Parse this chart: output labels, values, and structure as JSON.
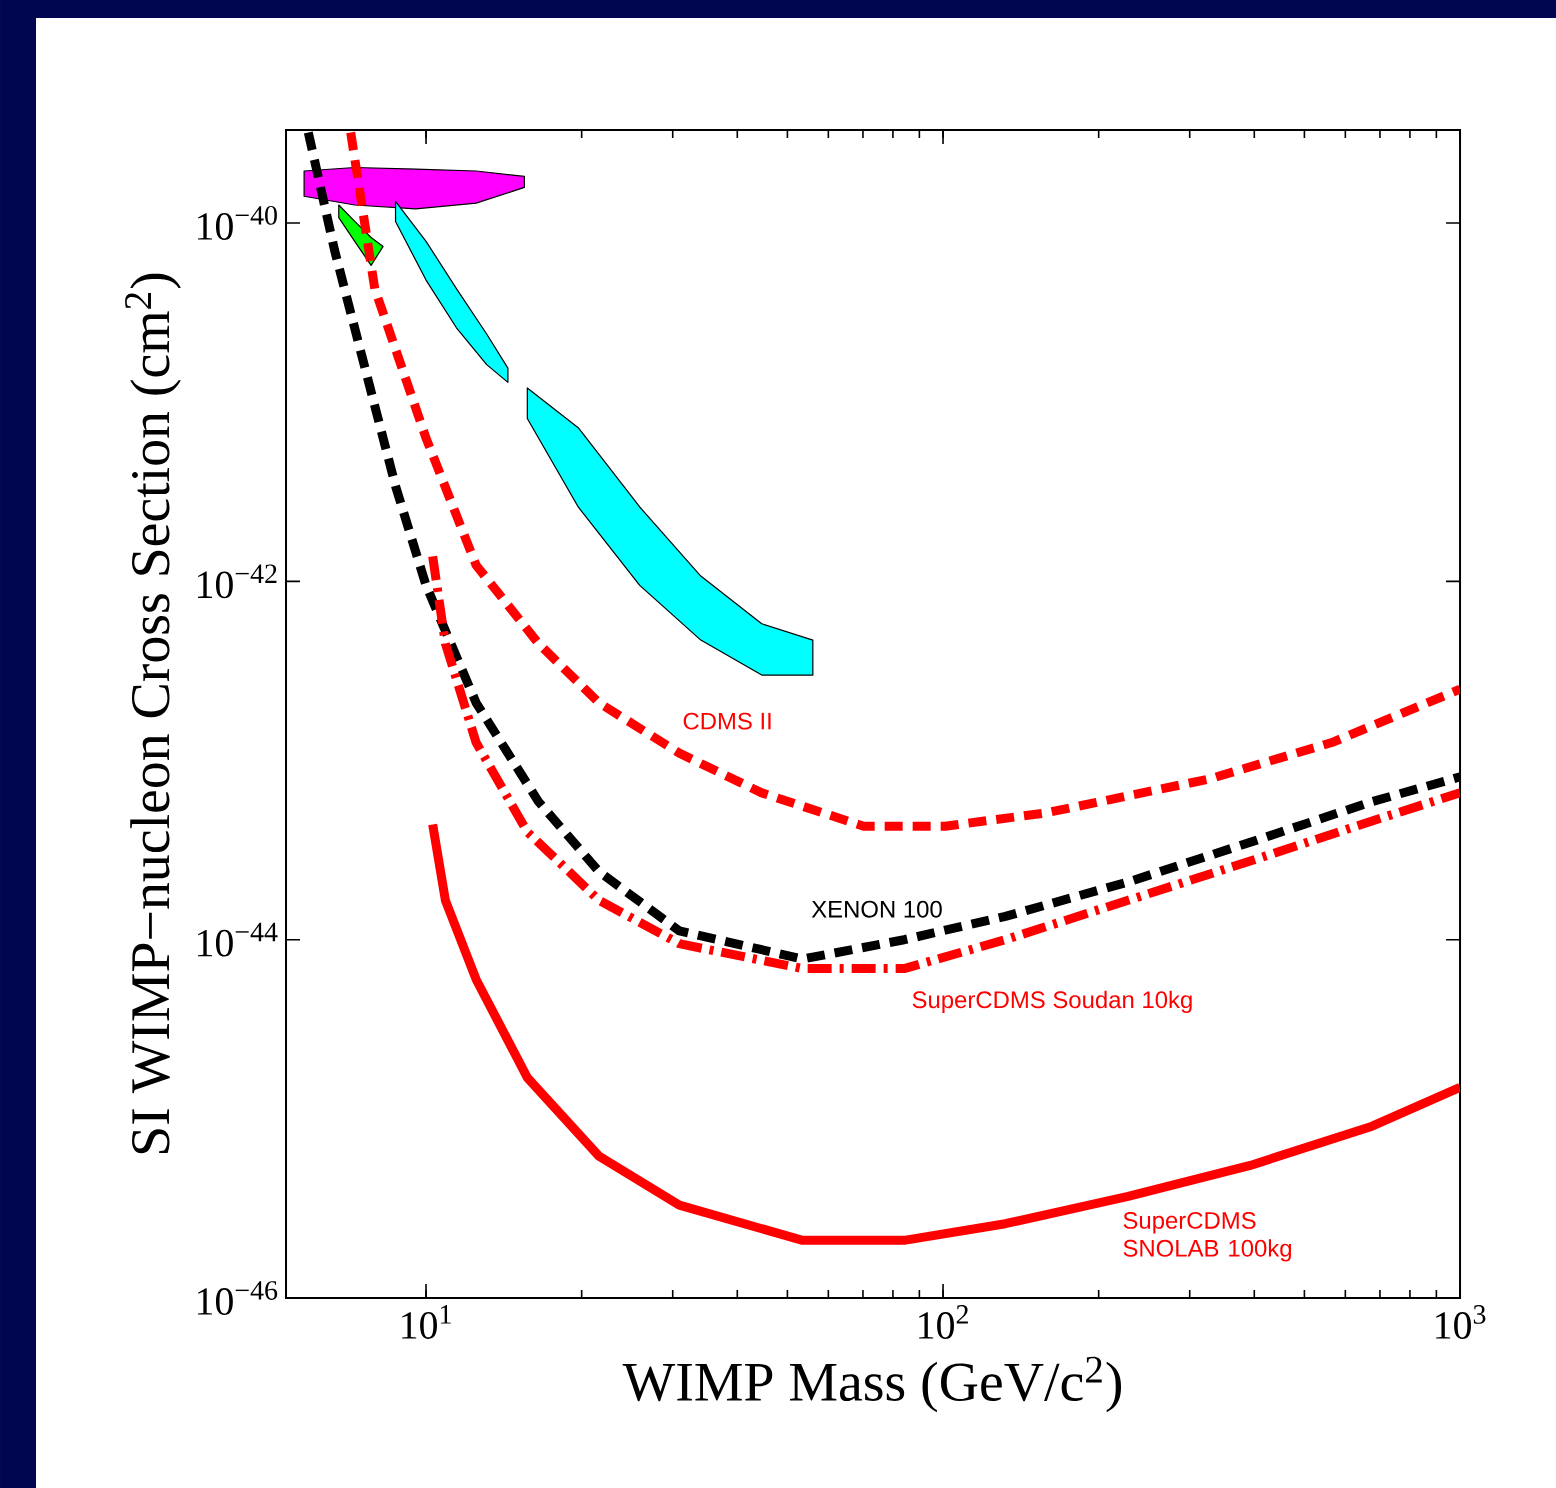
{
  "chart_data": {
    "type": "line",
    "xlabel": "WIMP Mass (GeV/c$^{2}$)",
    "ylabel": "SI WIMP−nucleon Cross Section (cm$^{2}$)",
    "log": "xy",
    "xlim": [
      5.36,
      1000
    ],
    "ylim": [
      1e-46,
      3.3e-40
    ],
    "xticks": [
      {
        "value": 10,
        "label": "10$^{1}$"
      },
      {
        "value": 100,
        "label": "10$^{2}$"
      },
      {
        "value": 1000,
        "label": "10$^{3}$"
      }
    ],
    "yticks": [
      {
        "value": 1e-40,
        "label": "10$^{−40}$"
      },
      {
        "value": 1e-42,
        "label": "10$^{−42}$"
      },
      {
        "value": 1e-44,
        "label": "10$^{−44}$"
      },
      {
        "value": 1e-46,
        "label": "10$^{−46}$"
      }
    ],
    "grid": false,
    "series": [
      {
        "type": "area",
        "color": "#ff00ff",
        "x": [
          5.81,
          7.28,
          9.55,
          12.5,
          15.5,
          15.5,
          12.5,
          9.55,
          7.28,
          5.81
        ],
        "values": [
          1.95e-40,
          2.04e-40,
          2e-40,
          1.95e-40,
          1.82e-40,
          1.58e-40,
          1.29e-40,
          1.2e-40,
          1.26e-40,
          1.41e-40
        ]
      },
      {
        "type": "area",
        "color": "#00ff00",
        "x": [
          6.78,
          7.28,
          7.83,
          8.26,
          7.83,
          7.28,
          6.78
        ],
        "values": [
          1.26e-40,
          1.02e-40,
          8.3e-41,
          7.4e-41,
          5.8e-41,
          7.9e-41,
          1.07e-40
        ]
      },
      {
        "type": "area",
        "color": "#00ffff",
        "x": [
          8.73,
          10,
          11.45,
          13.1,
          14.4,
          14.4,
          13.1,
          11.45,
          10,
          8.73
        ],
        "values": [
          1.32e-40,
          7.9e-41,
          4.3e-41,
          2.4e-41,
          1.55e-41,
          1.29e-41,
          1.62e-41,
          2.6e-41,
          4.8e-41,
          1.02e-40
        ]
      },
      {
        "type": "area",
        "color": "#00ffff",
        "x": [
          15.7,
          19.7,
          25.9,
          34.0,
          44.6,
          56.0,
          56.0,
          44.6,
          34.0,
          25.9,
          19.7,
          15.7
        ],
        "values": [
          1.2e-41,
          7.2e-42,
          2.6e-42,
          1.07e-42,
          5.8e-43,
          4.7e-43,
          3e-43,
          3e-43,
          4.7e-43,
          9.5e-43,
          2.6e-42,
          8.1e-42
        ]
      },
      {
        "name": "CDMS II",
        "color": "#ff0000",
        "line_style": "dashed",
        "x": [
          7.15,
          7.96,
          10,
          12.5,
          16.5,
          21.6,
          30.9,
          44.6,
          70.2,
          100.9,
          158,
          328,
          565,
          1000
        ],
        "values": [
          3.2e-40,
          4.3e-41,
          6.3e-42,
          1.23e-42,
          4.5e-43,
          2.1e-43,
          1.1e-43,
          6.6e-44,
          4.3e-44,
          4.3e-44,
          5.1e-44,
          7.9e-44,
          1.26e-43,
          2.5e-43
        ]
      },
      {
        "name": "XENON 100",
        "color": "#000000",
        "line_style": "dashed",
        "x": [
          5.92,
          6.65,
          7.62,
          8.73,
          10,
          12.5,
          16.5,
          21.6,
          30.9,
          53.5,
          84.1,
          132,
          228,
          393,
          676,
          1000
        ],
        "values": [
          3.2e-40,
          7.1e-41,
          1.55e-41,
          3.4e-42,
          9.5e-43,
          2.1e-43,
          5.9e-44,
          2.4e-44,
          1.12e-44,
          7.8e-45,
          1e-44,
          1.35e-44,
          2.1e-44,
          3.5e-44,
          5.9e-44,
          8.1e-44
        ]
      },
      {
        "name": "SuperCDMS Soudan 10kg",
        "color": "#ff0000",
        "line_style": "dashdot",
        "x": [
          10.3,
          10.9,
          12.5,
          15.7,
          21.6,
          30.9,
          53.5,
          84.1,
          132,
          228,
          393,
          676,
          1000
        ],
        "values": [
          1.38e-42,
          4.5e-43,
          1.26e-43,
          4e-44,
          1.66e-44,
          9.5e-45,
          6.9e-45,
          6.9e-45,
          1e-44,
          1.66e-44,
          2.75e-44,
          4.6e-44,
          6.6e-44
        ]
      },
      {
        "name": "SuperCDMS SNOLAB 100kg",
        "color": "#ff0000",
        "line_style": "solid",
        "x": [
          10.3,
          10.9,
          12.5,
          15.7,
          21.6,
          30.9,
          53.5,
          84.1,
          132,
          228,
          393,
          676,
          1000
        ],
        "values": [
          4.4e-44,
          1.66e-44,
          6e-45,
          1.7e-45,
          6.2e-46,
          3.3e-46,
          2.1e-46,
          2.1e-46,
          2.6e-46,
          3.7e-46,
          5.5e-46,
          9.1e-46,
          1.5e-45
        ]
      }
    ]
  }
}
